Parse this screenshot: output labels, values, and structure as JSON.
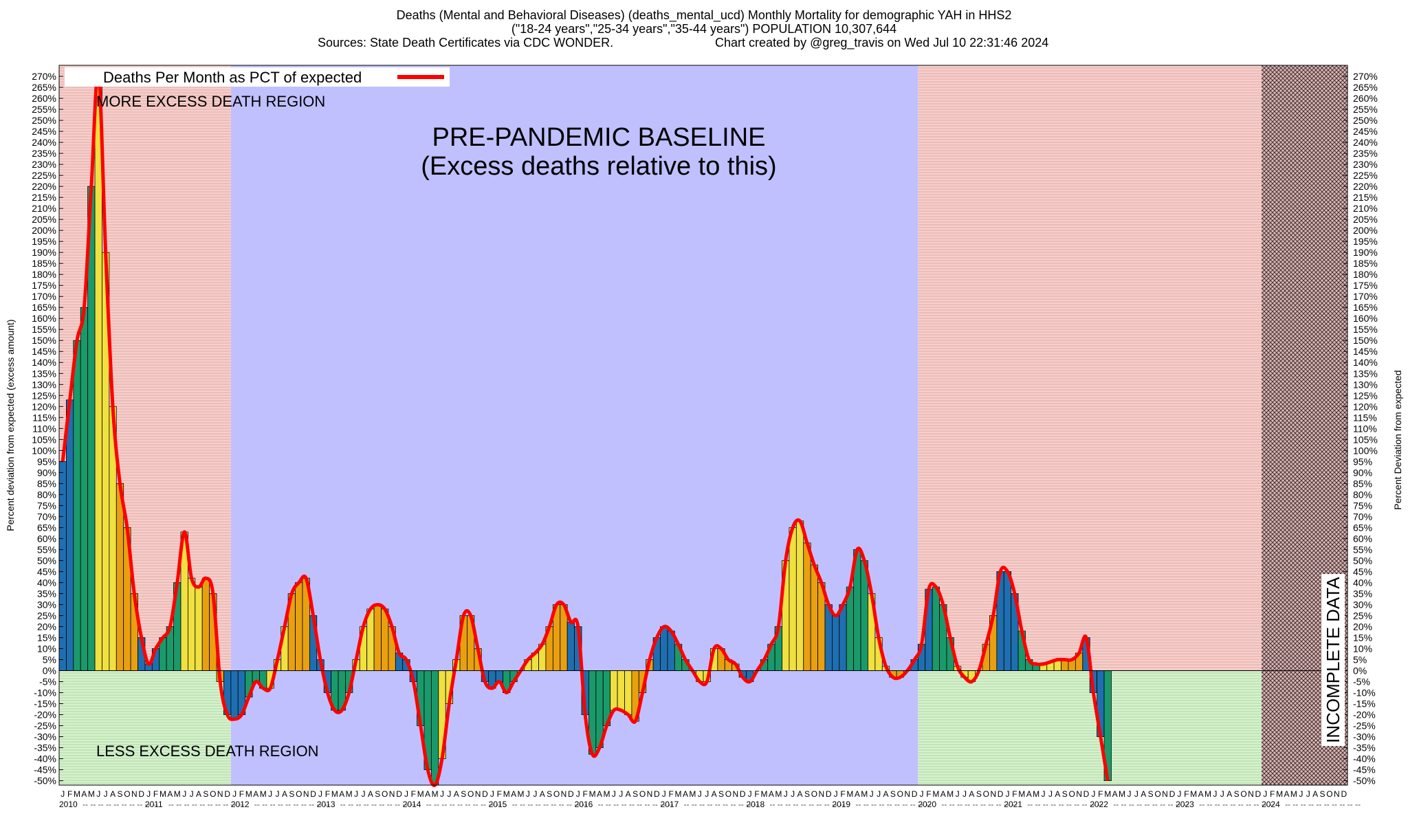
{
  "header": {
    "line1": "Deaths (Mental and Behavioral Diseases) (deaths_mental_ucd) Monthly Mortality for demographic YAH in HHS2",
    "line2": "(\"18-24 years\",\"25-34 years\",\"35-44 years\") POPULATION 10,307,644",
    "line3_left": "Sources: State Death Certificates via CDC WONDER.",
    "line3_right": "Chart created by @greg_travis on Wed Jul 10 22:31:46 2024"
  },
  "chart_data": {
    "type": "bar",
    "title": "Deaths (Mental and Behavioral Diseases) (deaths_mental_ucd) Monthly Mortality for demographic YAH in HHS2",
    "ylabel_left": "Percent deviation from expected (excess amount)",
    "ylabel_right": "Percent Deviation from expected",
    "ylim": [
      -52,
      275
    ],
    "ytick_step": 5,
    "legend": {
      "label": "Deaths Per Month as PCT of expected",
      "placement": "top-left"
    },
    "annotations": {
      "baseline_line1": "PRE-PANDEMIC BASELINE",
      "baseline_line2": "(Excess deaths relative to this)",
      "more_excess": "MORE EXCESS DEATH REGION",
      "less_excess": "LESS EXCESS DEATH REGION",
      "incomplete": "INCOMPLETE DATA"
    },
    "month_letters": [
      "J",
      "F",
      "M",
      "A",
      "M",
      "J",
      "J",
      "A",
      "S",
      "O",
      "N",
      "D"
    ],
    "years": [
      "2010",
      "2011",
      "2012",
      "2013",
      "2014",
      "2015",
      "2016",
      "2017",
      "2018",
      "2019",
      "2020",
      "2021",
      "2022",
      "2023",
      "2024"
    ],
    "start": "2010-01",
    "baseline_period": [
      "2012-01",
      "2019-12"
    ],
    "incomplete_period": [
      "2024-01",
      "2024-06"
    ],
    "season_colors": {
      "winter": "#1f6fb0",
      "spring": "#1a9a6a",
      "summer": "#f0e040",
      "fall": "#e8a010"
    },
    "values": [
      95,
      123,
      150,
      165,
      220,
      272,
      190,
      120,
      85,
      65,
      35,
      15,
      3,
      10,
      15,
      20,
      40,
      63,
      42,
      38,
      42,
      35,
      -5,
      -20,
      -22,
      -20,
      -12,
      -5,
      -8,
      -8,
      5,
      20,
      35,
      40,
      42,
      25,
      5,
      -10,
      -18,
      -18,
      -10,
      5,
      20,
      28,
      30,
      28,
      20,
      8,
      5,
      -5,
      -25,
      -45,
      -52,
      -40,
      -15,
      5,
      25,
      25,
      10,
      -5,
      -8,
      -5,
      -10,
      -5,
      0,
      5,
      8,
      12,
      20,
      30,
      30,
      22,
      20,
      -20,
      -38,
      -35,
      -25,
      -18,
      -18,
      -20,
      -23,
      -10,
      5,
      15,
      20,
      18,
      12,
      5,
      0,
      -5,
      -5,
      10,
      10,
      5,
      3,
      -3,
      -5,
      0,
      5,
      12,
      20,
      50,
      65,
      68,
      58,
      48,
      40,
      30,
      25,
      30,
      38,
      55,
      50,
      35,
      15,
      2,
      -3,
      -3,
      0,
      5,
      12,
      37,
      38,
      30,
      15,
      2,
      -3,
      -5,
      0,
      12,
      25,
      45,
      45,
      35,
      18,
      5,
      3,
      3,
      4,
      5,
      5,
      5,
      8,
      15,
      -10,
      -30,
      -50
    ]
  }
}
